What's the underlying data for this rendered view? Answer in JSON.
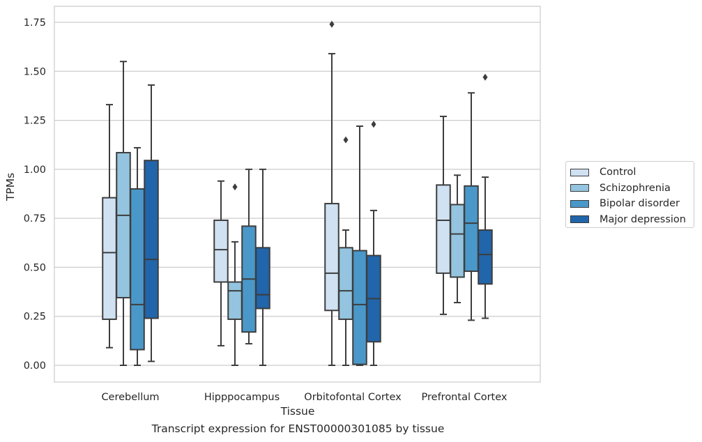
{
  "chart_data": {
    "type": "box",
    "ylabel": "TPMs",
    "xlabel": "Tissue",
    "caption": "Transcript expression for ENST00000301085 by tissue",
    "ylim": [
      -0.08,
      1.83
    ],
    "yticks": [
      "0.00",
      "0.25",
      "0.50",
      "0.75",
      "1.00",
      "1.25",
      "1.50",
      "1.75"
    ],
    "grid": "horizontal",
    "legend_position": "right",
    "categories": [
      "Cerebellum",
      "Hipppocampus",
      "Orbitofontal Cortex",
      "Prefrontal Cortex"
    ],
    "series": [
      {
        "name": "Control",
        "color": "#d0e1f2",
        "boxes": [
          {
            "whisker_low": 0.09,
            "q1": 0.235,
            "median": 0.575,
            "q3": 0.855,
            "whisker_high": 1.33,
            "outliers": []
          },
          {
            "whisker_low": 0.1,
            "q1": 0.425,
            "median": 0.59,
            "q3": 0.74,
            "whisker_high": 0.94,
            "outliers": []
          },
          {
            "whisker_low": 0.0,
            "q1": 0.28,
            "median": 0.47,
            "q3": 0.825,
            "whisker_high": 1.59,
            "outliers": [
              1.74
            ]
          },
          {
            "whisker_low": 0.26,
            "q1": 0.47,
            "median": 0.74,
            "q3": 0.92,
            "whisker_high": 1.27,
            "outliers": []
          }
        ]
      },
      {
        "name": "Schizophrenia",
        "color": "#94c4df",
        "boxes": [
          {
            "whisker_low": 0.0,
            "q1": 0.345,
            "median": 0.765,
            "q3": 1.085,
            "whisker_high": 1.55,
            "outliers": []
          },
          {
            "whisker_low": 0.0,
            "q1": 0.235,
            "median": 0.38,
            "q3": 0.425,
            "whisker_high": 0.63,
            "outliers": [
              0.91
            ]
          },
          {
            "whisker_low": 0.0,
            "q1": 0.235,
            "median": 0.38,
            "q3": 0.6,
            "whisker_high": 0.69,
            "outliers": [
              1.15
            ]
          },
          {
            "whisker_low": 0.32,
            "q1": 0.45,
            "median": 0.67,
            "q3": 0.82,
            "whisker_high": 0.97,
            "outliers": []
          }
        ]
      },
      {
        "name": "Bipolar disorder",
        "color": "#4a98c9",
        "boxes": [
          {
            "whisker_low": 0.0,
            "q1": 0.08,
            "median": 0.31,
            "q3": 0.9,
            "whisker_high": 1.11,
            "outliers": []
          },
          {
            "whisker_low": 0.11,
            "q1": 0.17,
            "median": 0.44,
            "q3": 0.71,
            "whisker_high": 1.0,
            "outliers": []
          },
          {
            "whisker_low": 0.0,
            "q1": 0.005,
            "median": 0.31,
            "q3": 0.585,
            "whisker_high": 1.22,
            "outliers": []
          },
          {
            "whisker_low": 0.23,
            "q1": 0.48,
            "median": 0.725,
            "q3": 0.915,
            "whisker_high": 1.39,
            "outliers": []
          }
        ]
      },
      {
        "name": "Major depression",
        "color": "#2165ab",
        "boxes": [
          {
            "whisker_low": 0.02,
            "q1": 0.24,
            "median": 0.54,
            "q3": 1.045,
            "whisker_high": 1.43,
            "outliers": []
          },
          {
            "whisker_low": 0.0,
            "q1": 0.29,
            "median": 0.36,
            "q3": 0.6,
            "whisker_high": 1.0,
            "outliers": []
          },
          {
            "whisker_low": 0.0,
            "q1": 0.12,
            "median": 0.34,
            "q3": 0.56,
            "whisker_high": 0.79,
            "outliers": [
              1.23
            ]
          },
          {
            "whisker_low": 0.24,
            "q1": 0.415,
            "median": 0.565,
            "q3": 0.69,
            "whisker_high": 0.96,
            "outliers": [
              1.47
            ]
          }
        ]
      }
    ]
  }
}
